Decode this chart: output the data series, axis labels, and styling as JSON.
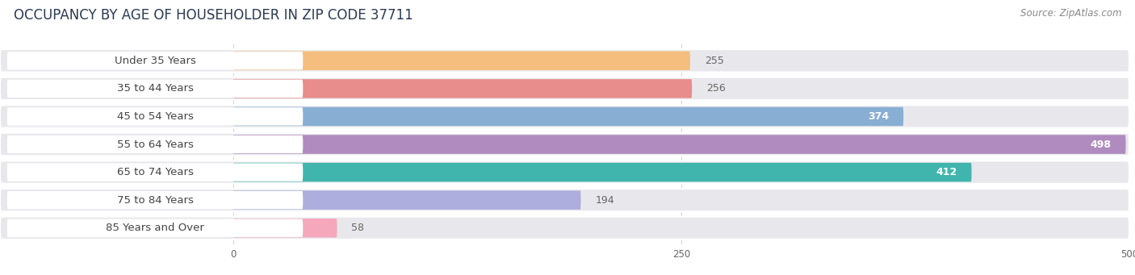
{
  "title": "OCCUPANCY BY AGE OF HOUSEHOLDER IN ZIP CODE 37711",
  "source": "Source: ZipAtlas.com",
  "categories": [
    "Under 35 Years",
    "35 to 44 Years",
    "45 to 54 Years",
    "55 to 64 Years",
    "65 to 74 Years",
    "75 to 84 Years",
    "85 Years and Over"
  ],
  "values": [
    255,
    256,
    374,
    498,
    412,
    194,
    58
  ],
  "bar_colors": [
    "#f5be7e",
    "#e88c8c",
    "#89aed4",
    "#b08bbf",
    "#40b5ad",
    "#adadde",
    "#f5a8bc"
  ],
  "bar_bg_color": "#e8e8ec",
  "xlim": [
    0,
    500
  ],
  "xmin": -130,
  "xticks": [
    0,
    250,
    500
  ],
  "title_fontsize": 12,
  "source_fontsize": 8.5,
  "bar_label_fontsize": 9,
  "cat_label_fontsize": 9.5,
  "background_color": "#ffffff",
  "fig_width": 14.06,
  "fig_height": 3.41,
  "dpi": 100
}
